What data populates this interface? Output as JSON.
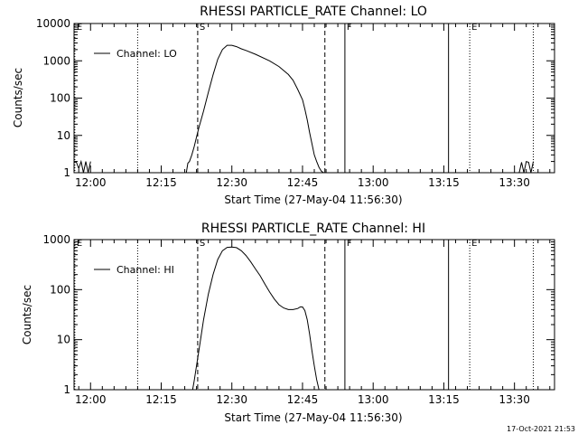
{
  "timestamp": "17-Oct-2021 21:53",
  "chart_data": [
    {
      "type": "line",
      "title": "RHESSI PARTICLE_RATE Channel: LO",
      "xlabel": "Start Time (27-May-04 11:56:30)",
      "ylabel": "Counts/sec",
      "y_scale": "log",
      "ylim": [
        1,
        10000
      ],
      "xlim": [
        "11:56:30",
        "13:38:30"
      ],
      "x_ticks": [
        "12:00",
        "12:15",
        "12:30",
        "12:45",
        "13:00",
        "13:15",
        "13:30"
      ],
      "y_ticks": [
        "1",
        "10",
        "100",
        "1000",
        "10000"
      ],
      "legend": {
        "position": "top-left",
        "entries": [
          "Channel: LO"
        ]
      },
      "markers": [
        {
          "label": "E",
          "time": "11:56:40",
          "style": "dotted"
        },
        {
          "label": "",
          "time": "12:10:00",
          "style": "dotted"
        },
        {
          "label": "S",
          "time": "12:22:45",
          "style": "dashed"
        },
        {
          "label": "",
          "time": "12:49:45",
          "style": "dashed"
        },
        {
          "label": "F",
          "time": "12:54:00",
          "style": "solid"
        },
        {
          "label": "",
          "time": "13:16:00",
          "style": "solid"
        },
        {
          "label": "E",
          "time": "13:20:30",
          "style": "dotted"
        },
        {
          "label": "",
          "time": "13:34:00",
          "style": "dotted"
        }
      ],
      "series": [
        {
          "name": "Channel: LO",
          "x": [
            "11:56:30",
            "11:57:00",
            "11:57:30",
            "11:58:00",
            "11:58:30",
            "11:59:00",
            "11:59:30",
            "12:00:00",
            "12:20:20",
            "12:20:40",
            "12:21:00",
            "12:21:30",
            "12:22:00",
            "12:22:30",
            "12:23:00",
            "12:24:00",
            "12:25:00",
            "12:26:00",
            "12:27:00",
            "12:28:00",
            "12:29:00",
            "12:30:00",
            "12:31:00",
            "12:32:00",
            "12:33:00",
            "12:35:00",
            "12:38:00",
            "12:40:00",
            "12:42:00",
            "12:43:00",
            "12:44:00",
            "12:45:00",
            "12:45:30",
            "12:46:00",
            "12:46:30",
            "12:47:00",
            "12:47:30",
            "12:48:00",
            "12:48:30",
            "12:49:00",
            "12:49:30",
            "12:50:00",
            "13:31:00",
            "13:31:30",
            "13:32:00",
            "13:32:30",
            "13:33:00",
            "13:33:30",
            "13:34:00"
          ],
          "y": [
            2,
            1.9,
            1.3,
            2,
            1,
            2,
            1,
            2,
            1,
            1.8,
            2,
            3,
            5,
            9,
            16,
            45,
            140,
            420,
            1100,
            2000,
            2600,
            2600,
            2400,
            2100,
            1900,
            1500,
            1000,
            700,
            430,
            300,
            170,
            90,
            50,
            26,
            12,
            6,
            3,
            2,
            1.4,
            1.1,
            1,
            1,
            1,
            1.9,
            1,
            2,
            1.9,
            1,
            2
          ]
        }
      ]
    },
    {
      "type": "line",
      "title": "RHESSI PARTICLE_RATE Channel: HI",
      "xlabel": "Start Time (27-May-04 11:56:30)",
      "ylabel": "Counts/sec",
      "y_scale": "log",
      "ylim": [
        1,
        1000
      ],
      "xlim": [
        "11:56:30",
        "13:38:30"
      ],
      "x_ticks": [
        "12:00",
        "12:15",
        "12:30",
        "12:45",
        "13:00",
        "13:15",
        "13:30"
      ],
      "y_ticks": [
        "1",
        "10",
        "100",
        "1000"
      ],
      "legend": {
        "position": "top-left",
        "entries": [
          "Channel: HI"
        ]
      },
      "markers": [
        {
          "label": "E",
          "time": "11:56:40",
          "style": "dotted"
        },
        {
          "label": "",
          "time": "12:10:00",
          "style": "dotted"
        },
        {
          "label": "S",
          "time": "12:22:45",
          "style": "dashed"
        },
        {
          "label": "",
          "time": "12:49:45",
          "style": "dashed"
        },
        {
          "label": "F",
          "time": "12:54:00",
          "style": "solid"
        },
        {
          "label": "",
          "time": "13:16:00",
          "style": "solid"
        },
        {
          "label": "E",
          "time": "13:20:30",
          "style": "dotted"
        },
        {
          "label": "",
          "time": "13:34:00",
          "style": "dotted"
        }
      ],
      "series": [
        {
          "name": "Channel: HI",
          "x": [
            "12:21:40",
            "12:22:00",
            "12:22:30",
            "12:23:00",
            "12:24:00",
            "12:25:00",
            "12:26:00",
            "12:27:00",
            "12:28:00",
            "12:29:00",
            "12:30:00",
            "12:31:00",
            "12:32:00",
            "12:33:00",
            "12:34:00",
            "12:35:00",
            "12:36:00",
            "12:37:00",
            "12:38:00",
            "12:39:00",
            "12:40:00",
            "12:41:00",
            "12:42:00",
            "12:43:00",
            "12:44:00",
            "12:44:30",
            "12:45:00",
            "12:45:30",
            "12:46:00",
            "12:46:30",
            "12:47:00",
            "12:47:30",
            "12:48:00",
            "12:48:30"
          ],
          "y": [
            1,
            1.5,
            3,
            6,
            25,
            80,
            200,
            400,
            600,
            700,
            710,
            690,
            600,
            480,
            360,
            260,
            190,
            130,
            90,
            65,
            50,
            43,
            40,
            40,
            42,
            45,
            45,
            38,
            25,
            13,
            6,
            3,
            1.6,
            1
          ]
        }
      ]
    }
  ]
}
